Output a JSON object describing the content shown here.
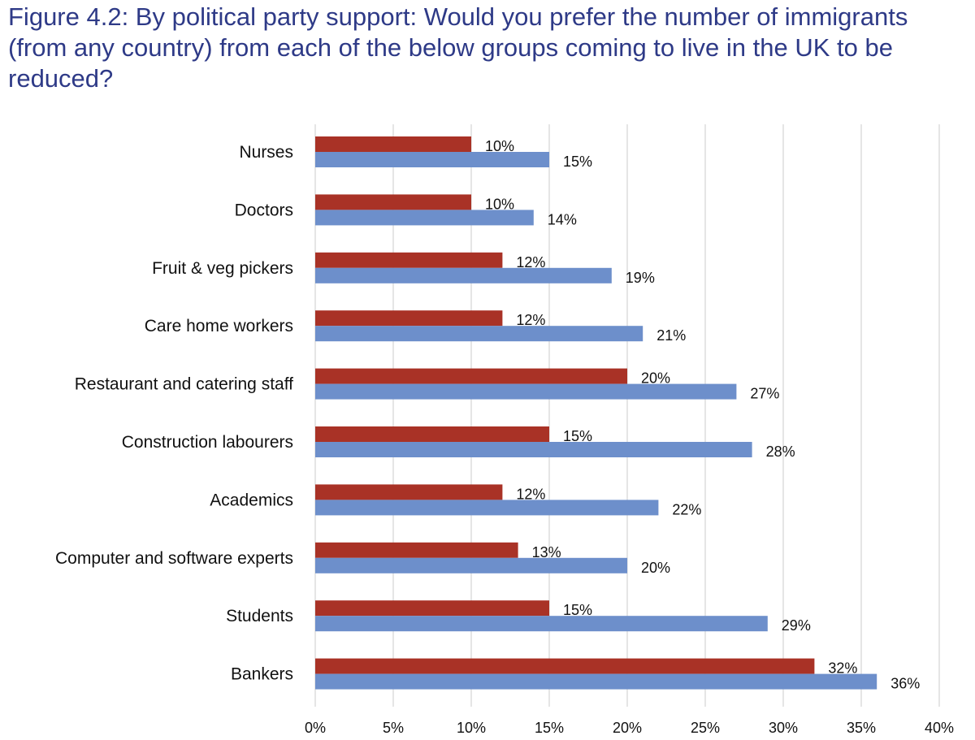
{
  "title": "Figure 4.2: By political party support: Would you prefer the number of immigrants (from any country) from each of the below groups coming to live in the UK to be reduced?",
  "chart_data": {
    "type": "bar",
    "orientation": "horizontal",
    "title": "Figure 4.2: By political party support: Would you prefer the number of immigrants (from any country) from each of the below groups coming to live in the UK to be reduced?",
    "categories": [
      "Nurses",
      "Doctors",
      "Fruit & veg pickers",
      "Care home workers",
      "Restaurant and catering staff",
      "Construction labourers",
      "Academics",
      "Computer and software experts",
      "Students",
      "Bankers"
    ],
    "series": [
      {
        "color": "#a93226",
        "values": [
          10,
          10,
          12,
          12,
          20,
          15,
          12,
          13,
          15,
          32
        ],
        "labels": [
          "10%",
          "10%",
          "12%",
          "12%",
          "20%",
          "15%",
          "12%",
          "13%",
          "15%",
          "32%"
        ]
      },
      {
        "color": "#6d8fcb",
        "values": [
          15,
          14,
          19,
          21,
          27,
          28,
          22,
          20,
          29,
          36
        ],
        "labels": [
          "15%",
          "14%",
          "19%",
          "21%",
          "27%",
          "28%",
          "22%",
          "20%",
          "29%",
          "36%"
        ]
      }
    ],
    "xlim": [
      0,
      40
    ],
    "xticks": [
      0,
      5,
      10,
      15,
      20,
      25,
      30,
      35,
      40
    ],
    "xtick_labels": [
      "0%",
      "5%",
      "10%",
      "15%",
      "20%",
      "25%",
      "30%",
      "35%",
      "40%"
    ],
    "grid": true,
    "legend": "none",
    "xlabel": "",
    "ylabel": ""
  }
}
